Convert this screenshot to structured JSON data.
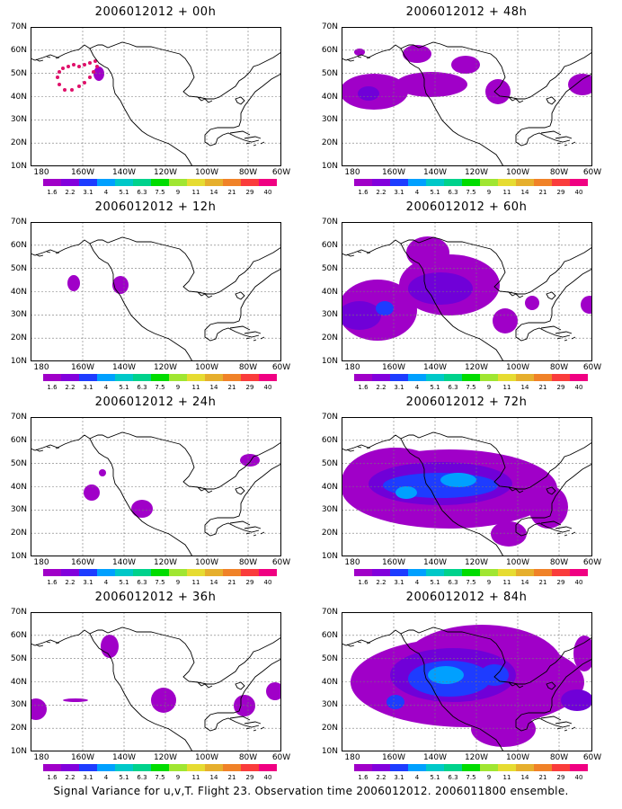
{
  "panels": [
    {
      "title": "2006012012 + 00h",
      "level": 0,
      "col": 0,
      "row": 0
    },
    {
      "title": "2006012012 + 48h",
      "level": 4,
      "col": 1,
      "row": 0
    },
    {
      "title": "2006012012 + 12h",
      "level": 1,
      "col": 0,
      "row": 1
    },
    {
      "title": "2006012012 + 60h",
      "level": 5,
      "col": 1,
      "row": 1
    },
    {
      "title": "2006012012 + 24h",
      "level": 2,
      "col": 0,
      "row": 2
    },
    {
      "title": "2006012012 + 72h",
      "level": 6,
      "col": 1,
      "row": 2
    },
    {
      "title": "2006012012 + 36h",
      "level": 3,
      "col": 0,
      "row": 3
    },
    {
      "title": "2006012012 + 84h",
      "level": 7,
      "col": 1,
      "row": 3
    }
  ],
  "map": {
    "lat_labels": [
      "70N",
      "60N",
      "50N",
      "40N",
      "30N",
      "20N",
      "10N"
    ],
    "lon_labels": [
      "180",
      "160W",
      "140W",
      "120W",
      "100W",
      "80W",
      "60W"
    ]
  },
  "colorbar": {
    "labels": [
      "1.6",
      "2.2",
      "3.1",
      "4",
      "5.1",
      "6.3",
      "7.5",
      "9",
      "11",
      "14",
      "21",
      "29",
      "40"
    ],
    "colors": [
      "#a000c8",
      "#8200dc",
      "#1e3cff",
      "#00a0ff",
      "#00c8c8",
      "#00d28c",
      "#00dc00",
      "#a0e632",
      "#e6dc32",
      "#e6af2d",
      "#f08228",
      "#fa3c3c",
      "#f00082"
    ]
  },
  "footer": "Signal Variance for u,v,T. Flight 23. Observation time 2006012012. 2006011800 ensemble."
}
